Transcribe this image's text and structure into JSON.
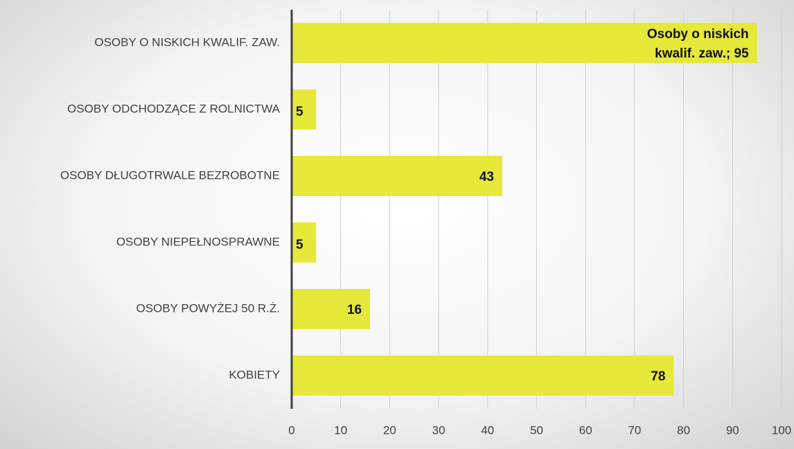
{
  "chart_data": {
    "type": "bar",
    "orientation": "horizontal",
    "categories": [
      "OSOBY O NISKICH KWALIF. ZAW.",
      "OSOBY ODCHODZĄCE Z ROLNICTWA",
      "OSOBY DŁUGOTRWALE BEZROBOTNE",
      "OSOBY NIEPEŁNOSPRAWNE",
      "OSOBY POWYŻEJ 50 R.Ż.",
      "KOBIETY"
    ],
    "values": [
      95,
      5,
      43,
      5,
      16,
      78
    ],
    "value_labels": [
      "Osoby o niskich kwalif. zaw.; 95",
      "5",
      "43",
      "5",
      "16",
      "78"
    ],
    "color": "#e6e83a",
    "xlim": [
      0,
      100
    ],
    "xticks": [
      0,
      10,
      20,
      30,
      40,
      50,
      60,
      70,
      80,
      90,
      100
    ],
    "grid": true
  }
}
